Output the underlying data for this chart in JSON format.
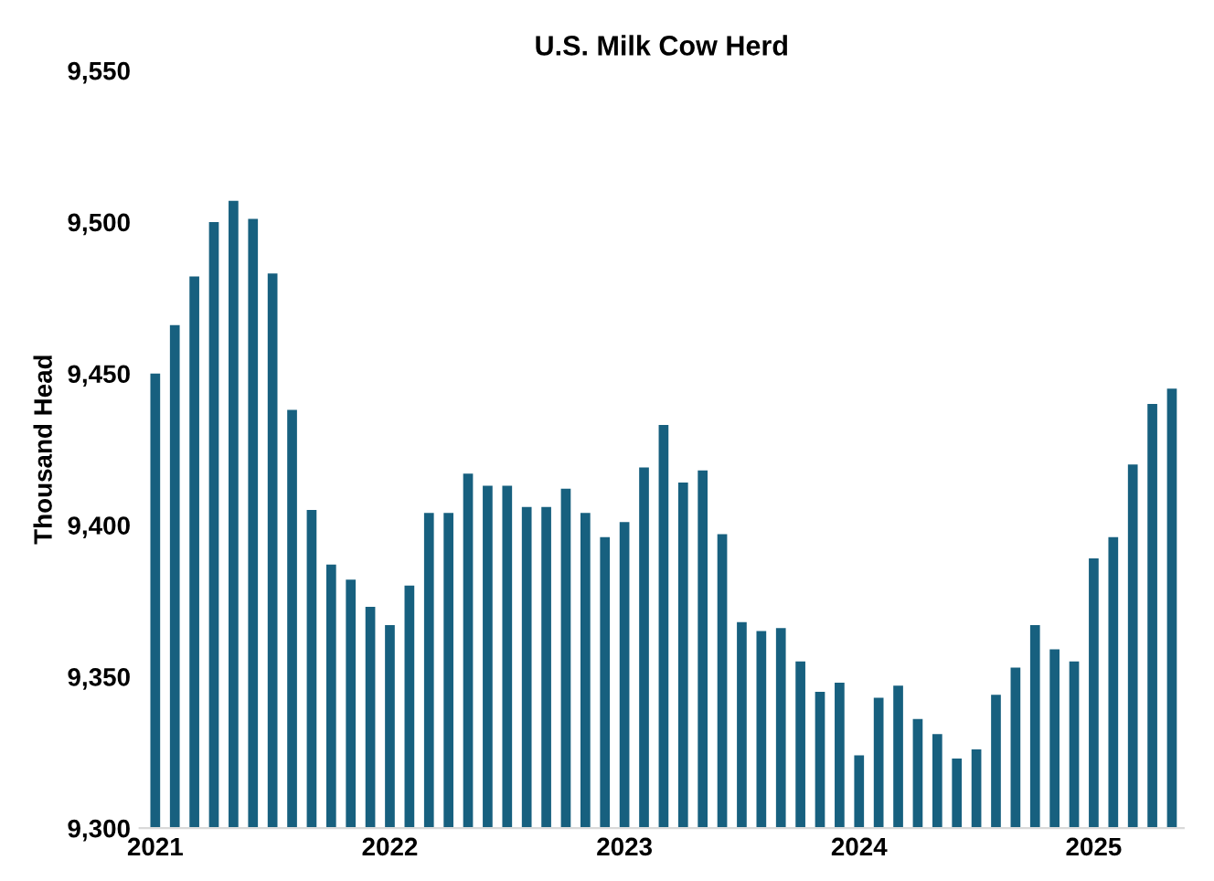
{
  "chart_data": {
    "type": "bar",
    "title": "U.S. Milk Cow Herd",
    "ylabel": "Thousand Head",
    "categories": [
      "2021",
      null,
      null,
      null,
      null,
      null,
      null,
      null,
      null,
      null,
      null,
      null,
      "2022",
      null,
      null,
      null,
      null,
      null,
      null,
      null,
      null,
      null,
      null,
      null,
      "2023",
      null,
      null,
      null,
      null,
      null,
      null,
      null,
      null,
      null,
      null,
      null,
      "2024",
      null,
      null,
      null,
      null,
      null,
      null,
      null,
      null,
      null,
      null,
      null,
      "2025",
      null,
      null,
      null,
      null
    ],
    "values": [
      9450,
      9466,
      9482,
      9500,
      9507,
      9501,
      9483,
      9438,
      9405,
      9387,
      9382,
      9373,
      9367,
      9380,
      9404,
      9404,
      9417,
      9413,
      9413,
      9406,
      9406,
      9412,
      9404,
      9396,
      9401,
      9419,
      9433,
      9414,
      9418,
      9397,
      9368,
      9365,
      9366,
      9355,
      9345,
      9348,
      9324,
      9343,
      9347,
      9336,
      9331,
      9323,
      9326,
      9344,
      9353,
      9367,
      9359,
      9355,
      9389,
      9396,
      9420,
      9440,
      9445
    ],
    "color": "#17607f",
    "ylim": [
      9300,
      9550
    ],
    "yticks": [
      {
        "value": 9300,
        "label": "9,300"
      },
      {
        "value": 9350,
        "label": "9,350"
      },
      {
        "value": 9400,
        "label": "9,400"
      },
      {
        "value": 9450,
        "label": "9,450"
      },
      {
        "value": 9500,
        "label": "9,500"
      },
      {
        "value": 9550,
        "label": "9,550"
      }
    ],
    "grid": false,
    "legend": false
  }
}
